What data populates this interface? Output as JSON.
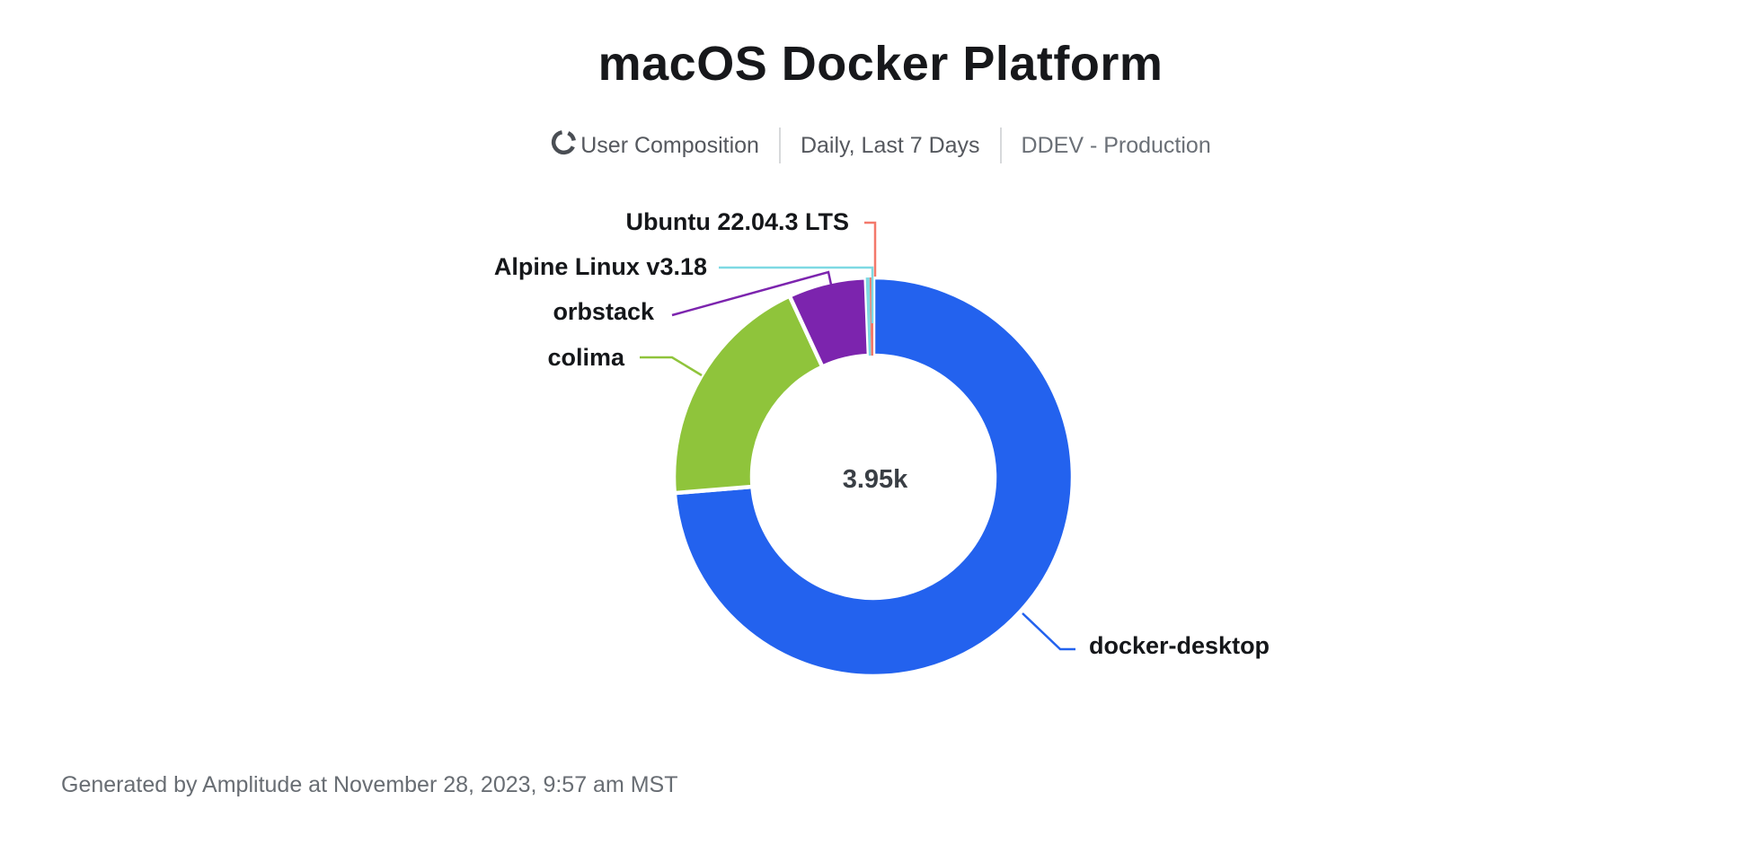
{
  "header": {
    "title": "macOS Docker Platform",
    "meta": {
      "chart_type_label": "User Composition",
      "date_range_label": "Daily, Last 7 Days",
      "segment_label": "DDEV - Production"
    }
  },
  "chart_data": {
    "type": "pie",
    "subtype": "donut",
    "title": "macOS Docker Platform",
    "center_label": "3.95k",
    "total_users_display": "3.95k",
    "legend_position": "callout-labels",
    "series": [
      {
        "name": "docker-desktop",
        "pct": 73.7,
        "color": "#2362ee"
      },
      {
        "name": "colima",
        "pct": 19.4,
        "color": "#8fc43b"
      },
      {
        "name": "orbstack",
        "pct": 6.3,
        "color": "#7c24ae"
      },
      {
        "name": "Alpine Linux v3.18",
        "pct": 0.3,
        "color": "#7ed9e3"
      },
      {
        "name": "Ubuntu 22.04.3 LTS",
        "pct": 0.3,
        "color": "#f3796b"
      }
    ]
  },
  "icons": {
    "user_composition_icon": "donut-segments-icon",
    "icon_color": "#4a4e54"
  },
  "footer": {
    "note": "Generated by Amplitude at November 28, 2023, 9:57 am MST"
  }
}
